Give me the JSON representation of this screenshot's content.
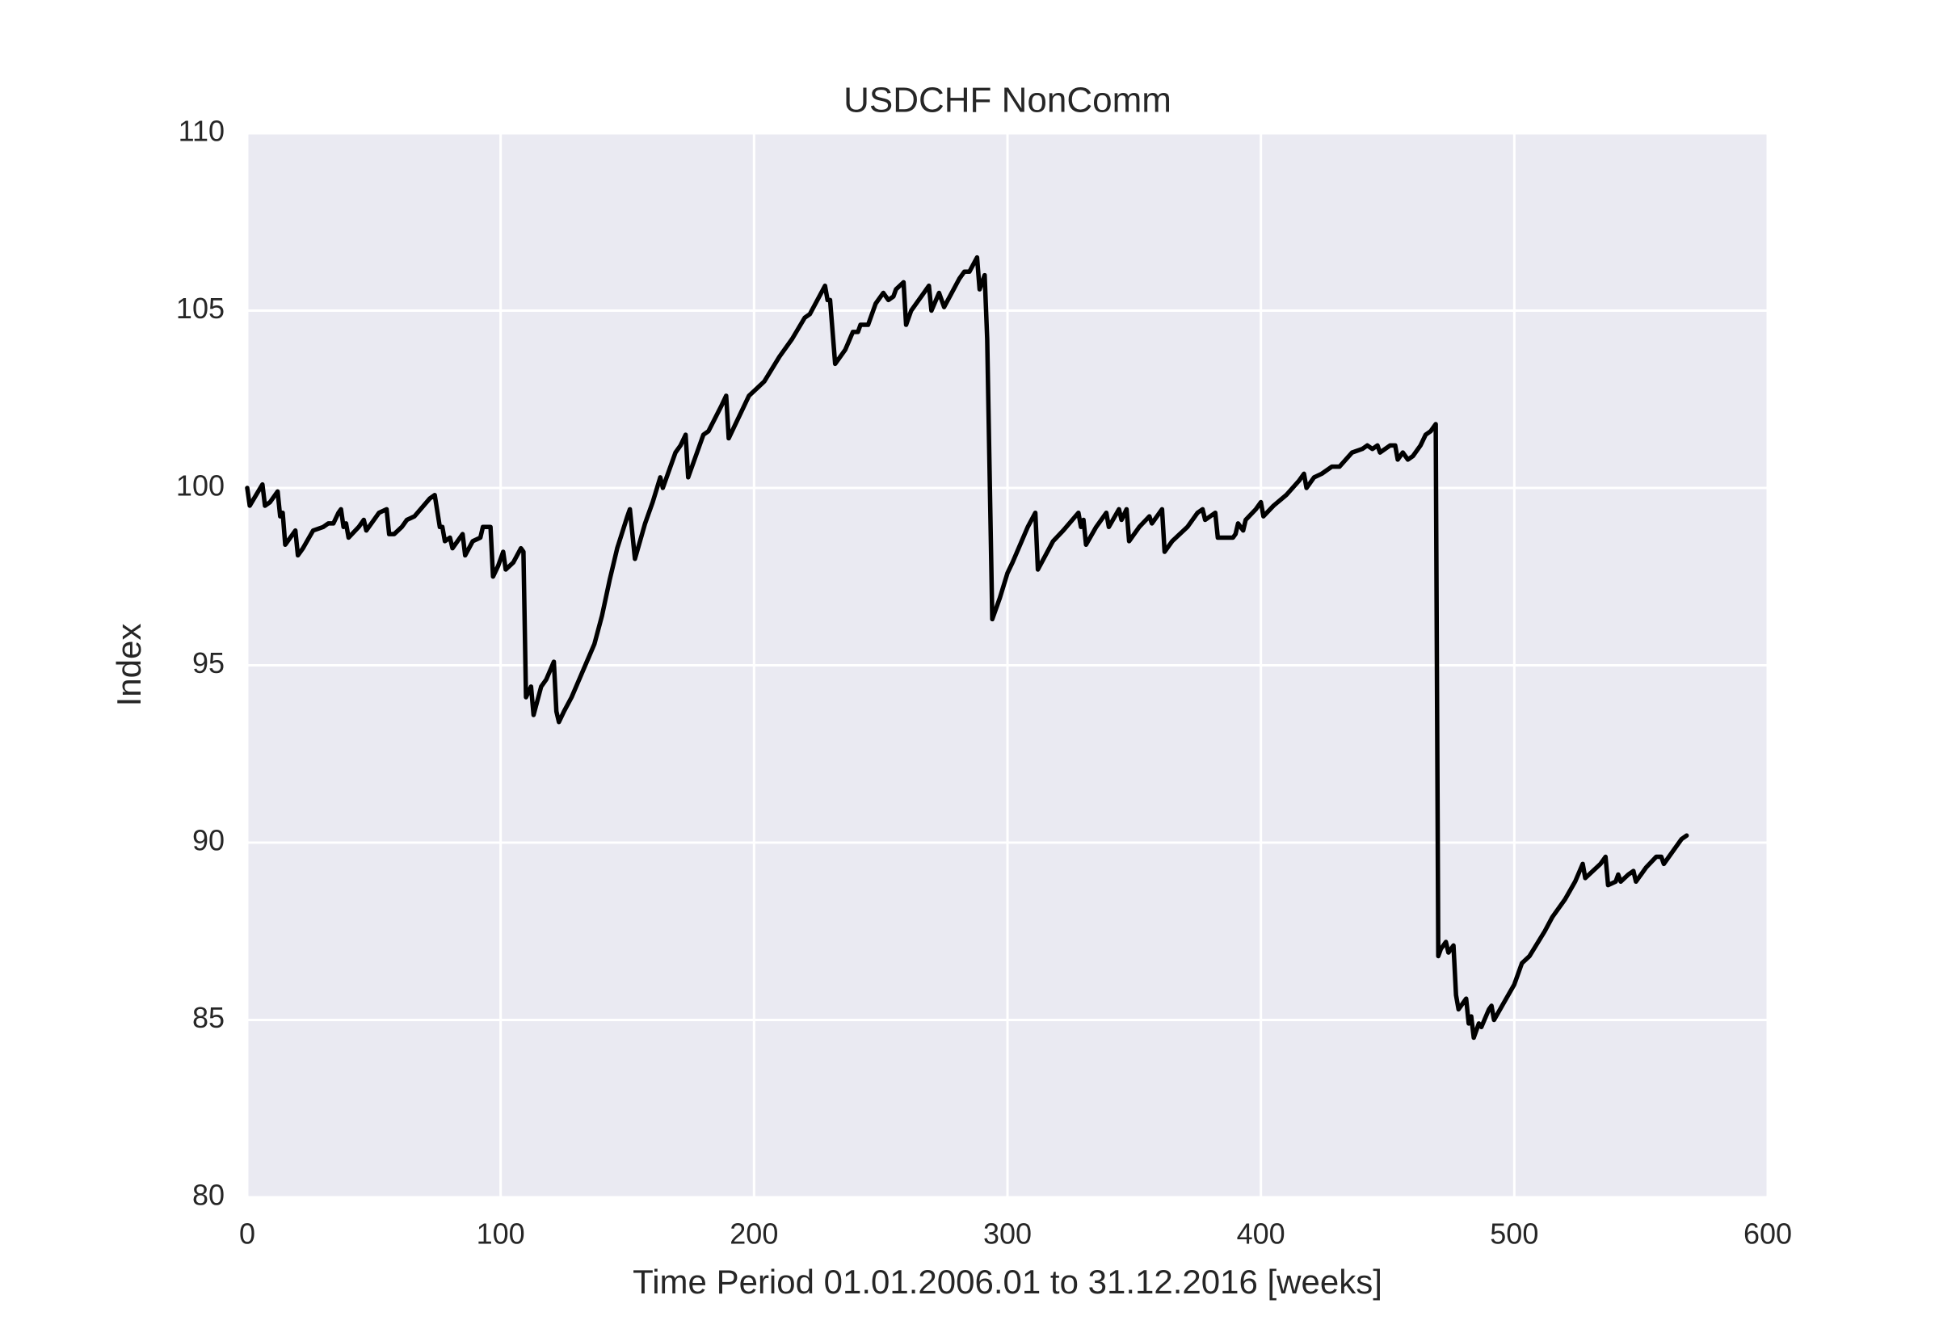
{
  "chart_data": {
    "type": "line",
    "title": "USDCHF NonComm",
    "xlabel": "Time Period 01.01.2006.01 to 31.12.2016 [weeks]",
    "ylabel": "Index",
    "xlim": [
      0,
      600
    ],
    "xticks": [
      0,
      100,
      200,
      300,
      400,
      500,
      600
    ],
    "ylim": [
      80,
      110
    ],
    "yticks": [
      80,
      85,
      90,
      95,
      100,
      105,
      110
    ],
    "grid": true,
    "x": [
      0,
      1,
      6,
      7,
      9,
      12,
      13,
      14,
      15,
      19,
      20,
      22,
      26,
      30,
      32,
      34,
      36,
      37,
      38,
      39,
      40,
      44,
      46,
      47,
      52,
      55,
      56,
      58,
      61,
      63,
      66,
      72,
      74,
      76,
      77,
      78,
      80,
      81,
      85,
      86,
      89,
      92,
      93,
      96,
      97,
      99,
      101,
      102,
      105,
      108,
      109,
      110,
      112,
      113,
      116,
      118,
      121,
      122,
      123,
      125,
      128,
      131,
      134,
      137,
      140,
      143,
      146,
      150,
      151,
      153,
      155,
      157,
      160,
      163,
      164,
      166,
      169,
      171,
      173,
      174,
      177,
      180,
      182,
      187,
      189,
      190,
      194,
      198,
      201,
      204,
      210,
      215,
      220,
      222,
      228,
      229,
      230,
      232,
      236,
      239,
      241,
      242,
      245,
      248,
      251,
      253,
      255,
      256,
      259,
      260,
      262,
      265,
      267,
      269,
      270,
      273,
      275,
      278,
      281,
      283,
      285,
      288,
      289,
      291,
      292,
      294,
      297,
      300,
      302,
      305,
      308,
      311,
      312,
      315,
      318,
      322,
      328,
      329,
      330,
      331,
      335,
      339,
      340,
      344,
      345,
      347,
      348,
      352,
      356,
      357,
      361,
      362,
      365,
      371,
      375,
      377,
      378,
      380,
      382,
      383,
      385,
      389,
      390,
      391,
      393,
      394,
      398,
      400,
      401,
      405,
      410,
      415,
      417,
      418,
      421,
      424,
      428,
      431,
      436,
      440,
      442,
      444,
      446,
      447,
      451,
      453,
      454,
      456,
      458,
      460,
      463,
      465,
      467,
      469,
      470,
      471,
      473,
      474,
      476,
      477,
      478,
      481,
      482,
      483,
      484,
      486,
      487,
      490,
      491,
      492,
      496,
      500,
      503,
      506,
      512,
      515,
      520,
      524,
      527,
      528,
      531,
      534,
      536,
      537,
      540,
      541,
      542,
      545,
      547,
      548,
      552,
      556,
      558,
      559,
      563,
      566,
      568
    ],
    "series": [
      {
        "name": "USDCHF NonComm",
        "color": "#000000",
        "values": [
          100.0,
          99.5,
          100.1,
          99.5,
          99.6,
          99.9,
          99.2,
          99.3,
          98.4,
          98.8,
          98.1,
          98.3,
          98.8,
          98.9,
          99.0,
          99.0,
          99.3,
          99.4,
          98.9,
          99.0,
          98.6,
          98.9,
          99.1,
          98.8,
          99.3,
          99.4,
          98.7,
          98.7,
          98.9,
          99.1,
          99.2,
          99.7,
          99.8,
          98.9,
          98.9,
          98.5,
          98.6,
          98.3,
          98.7,
          98.1,
          98.5,
          98.6,
          98.9,
          98.9,
          97.5,
          97.8,
          98.2,
          97.7,
          97.9,
          98.3,
          98.2,
          94.1,
          94.4,
          93.6,
          94.4,
          94.6,
          95.1,
          93.7,
          93.4,
          93.7,
          94.1,
          94.6,
          95.1,
          95.6,
          96.4,
          97.4,
          98.3,
          99.2,
          99.4,
          98.0,
          98.5,
          99.0,
          99.6,
          100.3,
          100.0,
          100.4,
          101.0,
          101.2,
          101.5,
          100.3,
          100.9,
          101.5,
          101.6,
          102.3,
          102.6,
          101.4,
          102.0,
          102.6,
          102.8,
          103.0,
          103.7,
          104.2,
          104.8,
          104.9,
          105.7,
          105.3,
          105.3,
          103.5,
          103.9,
          104.4,
          104.4,
          104.6,
          104.6,
          105.2,
          105.5,
          105.3,
          105.4,
          105.6,
          105.8,
          104.6,
          105.0,
          105.3,
          105.5,
          105.7,
          105.0,
          105.5,
          105.1,
          105.5,
          105.9,
          106.1,
          106.1,
          106.5,
          105.6,
          106.0,
          104.2,
          96.3,
          96.9,
          97.6,
          97.9,
          98.4,
          98.9,
          99.3,
          97.7,
          98.1,
          98.5,
          98.8,
          99.3,
          98.9,
          99.1,
          98.4,
          98.9,
          99.3,
          98.9,
          99.4,
          99.1,
          99.4,
          98.5,
          98.9,
          99.2,
          99.0,
          99.4,
          98.2,
          98.5,
          98.9,
          99.3,
          99.4,
          99.1,
          99.2,
          99.3,
          98.6,
          98.6,
          98.6,
          98.7,
          99.0,
          98.8,
          99.1,
          99.4,
          99.6,
          99.2,
          99.5,
          99.8,
          100.2,
          100.4,
          100.0,
          100.3,
          100.4,
          100.6,
          100.6,
          101.0,
          101.1,
          101.2,
          101.1,
          101.2,
          101.0,
          101.2,
          101.2,
          100.8,
          101.0,
          100.8,
          100.9,
          101.2,
          101.5,
          101.6,
          101.8,
          86.8,
          87.0,
          87.2,
          86.9,
          87.1,
          85.7,
          85.3,
          85.6,
          84.9,
          85.1,
          84.5,
          84.9,
          84.8,
          85.3,
          85.4,
          85.0,
          85.5,
          86.0,
          86.6,
          86.8,
          87.5,
          87.9,
          88.4,
          88.9,
          89.4,
          89.0,
          89.2,
          89.4,
          89.6,
          88.8,
          88.9,
          89.1,
          88.9,
          89.1,
          89.2,
          88.9,
          89.3,
          89.6,
          89.6,
          89.4,
          89.8,
          90.1,
          90.2
        ]
      }
    ]
  }
}
